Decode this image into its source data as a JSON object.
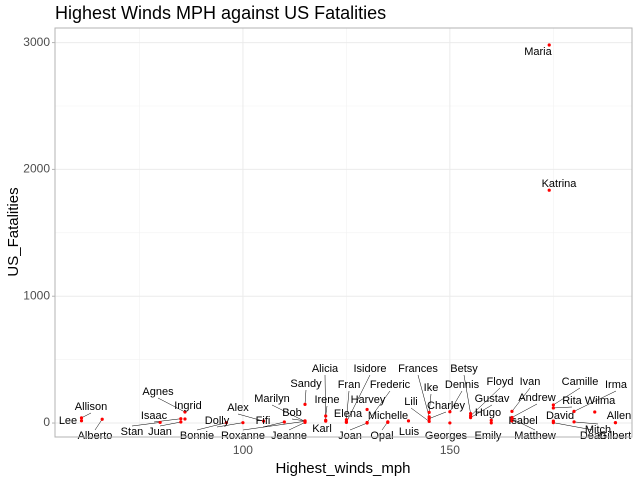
{
  "chart_data": {
    "type": "scatter",
    "title": "Highest Winds MPH against US Fatalities",
    "x_label": "Highest_winds_mph",
    "y_label": "US_Fatalities",
    "color": "#ff0000",
    "grid": true,
    "xlim": [
      54.6,
      194
    ],
    "ylim": [
      -110,
      3115
    ],
    "xticks": [
      100,
      150
    ],
    "yticks": [
      0,
      1000,
      2000,
      3000
    ],
    "labels": [
      "Lee",
      "Allison",
      "Alberto",
      "Stan",
      "Juan",
      "Isaac",
      "Agnes",
      "Ingrid",
      "Bonnie",
      "Dolly",
      "Alex",
      "Fifi",
      "Roxanne",
      "Marilyn",
      "Bob",
      "Jeanne",
      "Sandy",
      "Alicia",
      "Irene",
      "Karl",
      "Fran",
      "Isidore",
      "Elena",
      "Frederic",
      "Harvey",
      "Michelle",
      "Joan",
      "Opal",
      "Frances",
      "Ike",
      "Lili",
      "Charley",
      "Luis",
      "Georges",
      "Betsy",
      "Dennis",
      "Floyd",
      "Gustav",
      "Hugo",
      "Emily",
      "Ivan",
      "Andrew",
      "Isabel",
      "Matthew",
      "Camille",
      "Rita",
      "David",
      "Dean",
      "Irma",
      "Wilma",
      "Mitch",
      "Allen",
      "Gilbert",
      "Katrina",
      "Maria"
    ],
    "x": [
      61,
      61,
      66,
      80,
      85,
      85,
      86,
      86,
      96,
      100,
      105,
      110,
      115,
      115,
      115,
      115,
      115,
      120,
      120,
      120,
      125,
      125,
      125,
      130,
      130,
      135,
      130,
      135,
      145,
      145,
      145,
      145,
      140,
      150,
      155,
      150,
      155,
      155,
      160,
      160,
      165,
      165,
      165,
      165,
      175,
      175,
      175,
      175,
      180,
      185,
      180,
      190,
      190,
      174,
      174
    ],
    "y": [
      18,
      41,
      30,
      5,
      8,
      34,
      87,
      32,
      3,
      3,
      15,
      8,
      14,
      13,
      17,
      5,
      147,
      22,
      56,
      15,
      26,
      5,
      9,
      5,
      107,
      5,
      0,
      9,
      49,
      84,
      13,
      35,
      17,
      1,
      75,
      89,
      57,
      43,
      21,
      1,
      92,
      44,
      17,
      34,
      143,
      119,
      15,
      3,
      92,
      87,
      9,
      3,
      3,
      1836,
      2981
    ]
  }
}
